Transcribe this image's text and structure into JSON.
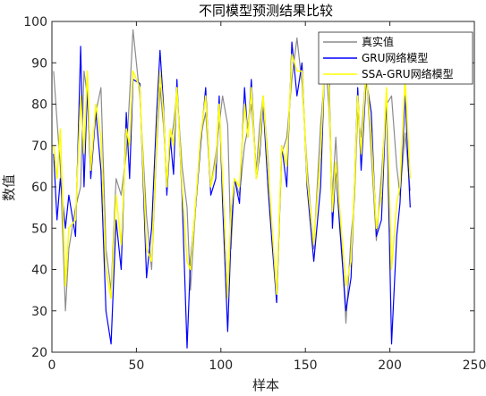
{
  "chart_data": {
    "type": "line",
    "title": "不同模型预测结果比较",
    "xlabel": "样本",
    "ylabel": "数值",
    "xlim": [
      0,
      250
    ],
    "ylim": [
      20,
      100
    ],
    "xticks": [
      0,
      50,
      100,
      150,
      200,
      250
    ],
    "yticks": [
      20,
      30,
      40,
      50,
      60,
      70,
      80,
      90,
      100
    ],
    "grid": false,
    "legend_position": "top-right",
    "series": [
      {
        "name": "真实值",
        "color": "#8c8c8c",
        "x": [
          1,
          3,
          5,
          8,
          10,
          14,
          17,
          19,
          21,
          23,
          26,
          29,
          32,
          35,
          38,
          41,
          44,
          46,
          48,
          52,
          56,
          59,
          62,
          64,
          66,
          68,
          70,
          72,
          74,
          77,
          80,
          82,
          85,
          88,
          91,
          94,
          97,
          99,
          101,
          104,
          106,
          108,
          111,
          114,
          116,
          118,
          121,
          123,
          125,
          128,
          130,
          133,
          136,
          139,
          142,
          145,
          148,
          151,
          155,
          159,
          162,
          164,
          166,
          168,
          170,
          174,
          177,
          179,
          181,
          183,
          186,
          189,
          192,
          195,
          198,
          201,
          204,
          206,
          209,
          212
        ],
        "values": [
          88,
          76,
          65,
          30,
          45,
          55,
          60,
          88,
          82,
          65,
          78,
          84,
          45,
          35,
          62,
          58,
          68,
          82,
          98,
          82,
          53,
          40,
          70,
          84,
          75,
          62,
          70,
          75,
          83,
          65,
          55,
          35,
          55,
          72,
          78,
          60,
          68,
          75,
          82,
          75,
          45,
          62,
          58,
          70,
          74,
          80,
          64,
          75,
          82,
          66,
          50,
          32,
          68,
          72,
          86,
          96,
          85,
          65,
          45,
          75,
          90,
          79,
          58,
          72,
          56,
          27,
          48,
          57,
          78,
          72,
          88,
          68,
          47,
          63,
          80,
          82,
          65,
          58,
          73,
          59
        ]
      },
      {
        "name": "GRU网络模型",
        "color": "#0000ff",
        "x": [
          1,
          3,
          5,
          8,
          10,
          14,
          17,
          19,
          21,
          23,
          26,
          29,
          32,
          35,
          38,
          41,
          44,
          46,
          48,
          52,
          56,
          59,
          62,
          64,
          66,
          68,
          70,
          72,
          74,
          77,
          80,
          82,
          85,
          88,
          91,
          94,
          97,
          99,
          101,
          104,
          106,
          108,
          111,
          114,
          116,
          118,
          121,
          123,
          125,
          128,
          130,
          133,
          136,
          139,
          142,
          145,
          148,
          151,
          155,
          159,
          162,
          164,
          166,
          168,
          170,
          174,
          177,
          179,
          181,
          183,
          186,
          189,
          192,
          195,
          198,
          201,
          204,
          206,
          209,
          212
        ],
        "values": [
          68,
          52,
          62,
          50,
          58,
          48,
          94,
          60,
          84,
          62,
          78,
          64,
          30,
          22,
          52,
          40,
          78,
          62,
          86,
          85,
          38,
          50,
          78,
          93,
          80,
          58,
          72,
          63,
          86,
          58,
          21,
          42,
          55,
          70,
          84,
          58,
          62,
          82,
          56,
          25,
          48,
          62,
          56,
          84,
          72,
          86,
          62,
          68,
          80,
          59,
          48,
          32,
          70,
          60,
          95,
          82,
          90,
          60,
          42,
          60,
          96,
          88,
          50,
          65,
          52,
          30,
          38,
          60,
          84,
          64,
          86,
          78,
          48,
          52,
          82,
          22,
          48,
          56,
          82,
          55
        ]
      },
      {
        "name": "SSA-GRU网络模型",
        "color": "#ffff00",
        "x": [
          1,
          3,
          5,
          8,
          10,
          14,
          17,
          19,
          21,
          23,
          26,
          29,
          32,
          35,
          38,
          41,
          44,
          46,
          48,
          52,
          56,
          59,
          62,
          64,
          66,
          68,
          70,
          72,
          74,
          77,
          80,
          82,
          85,
          88,
          91,
          94,
          97,
          99,
          101,
          104,
          106,
          108,
          111,
          114,
          116,
          118,
          121,
          123,
          125,
          128,
          130,
          133,
          136,
          139,
          142,
          145,
          148,
          151,
          155,
          159,
          162,
          164,
          166,
          168,
          170,
          174,
          177,
          179,
          181,
          183,
          186,
          189,
          192,
          195,
          198,
          201,
          204,
          206,
          209,
          212
        ],
        "values": [
          70,
          62,
          74,
          36,
          50,
          52,
          82,
          68,
          88,
          64,
          80,
          72,
          40,
          33,
          58,
          46,
          74,
          70,
          88,
          84,
          45,
          42,
          72,
          88,
          78,
          60,
          74,
          70,
          84,
          60,
          42,
          40,
          56,
          72,
          82,
          60,
          66,
          80,
          62,
          33,
          54,
          62,
          60,
          80,
          72,
          84,
          62,
          70,
          82,
          64,
          52,
          34,
          70,
          65,
          92,
          88,
          88,
          62,
          46,
          68,
          94,
          84,
          54,
          66,
          56,
          36,
          42,
          60,
          82,
          68,
          88,
          72,
          50,
          58,
          84,
          40,
          56,
          60,
          86,
          62
        ]
      }
    ]
  }
}
